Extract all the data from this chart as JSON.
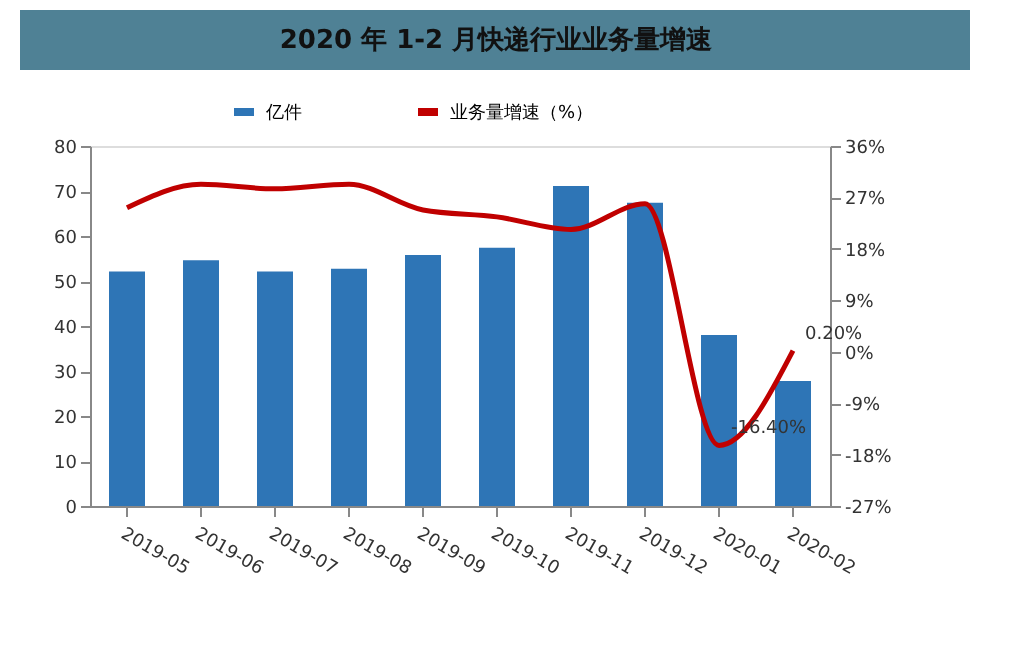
{
  "chart_data": {
    "type": "bar",
    "title": "2020 年 1-2 月快递行业业务量增速",
    "categories": [
      "2019-05",
      "2019-06",
      "2019-07",
      "2019-08",
      "2019-09",
      "2019-10",
      "2019-11",
      "2019-12",
      "2020-01",
      "2020-02"
    ],
    "series": [
      {
        "name": "亿件",
        "type": "bar",
        "color": "#2e75b6",
        "values": [
          52.1,
          54.6,
          52.1,
          52.7,
          55.8,
          57.4,
          71.1,
          67.4,
          38.0,
          27.8
        ]
      },
      {
        "name": "业务量增速（%）",
        "type": "line",
        "axis": "y2",
        "color": "#c00000",
        "values": [
          25.2,
          29.3,
          28.5,
          29.3,
          24.8,
          23.6,
          21.4,
          25.9,
          -16.4,
          0.2
        ],
        "value_labels": [
          null,
          null,
          null,
          null,
          null,
          null,
          null,
          null,
          "-16.40%",
          "0.20%"
        ]
      }
    ],
    "ylim": [
      0,
      80
    ],
    "yticks": [
      0,
      10,
      20,
      30,
      40,
      50,
      60,
      70,
      80
    ],
    "y2lim": [
      -27,
      36
    ],
    "y2ticks": [
      {
        "value": -27,
        "label": "-27%"
      },
      {
        "value": -18,
        "label": "-18%"
      },
      {
        "value": -9,
        "label": "-9%"
      },
      {
        "value": 0,
        "label": "0%"
      },
      {
        "value": 9,
        "label": "9%"
      },
      {
        "value": 18,
        "label": "18%"
      },
      {
        "value": 27,
        "label": "27%"
      },
      {
        "value": 36,
        "label": "36%"
      }
    ],
    "legend": "top",
    "grid": false,
    "marker": "none",
    "line_style": "solid"
  }
}
